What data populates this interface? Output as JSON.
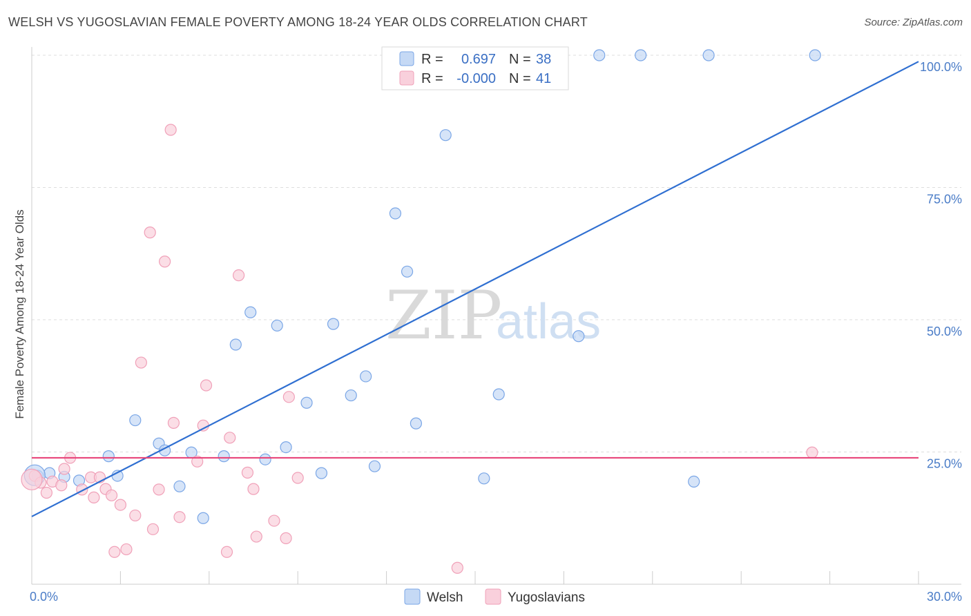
{
  "title": "WELSH VS YUGOSLAVIAN FEMALE POVERTY AMONG 18-24 YEAR OLDS CORRELATION CHART",
  "source": "Source: ZipAtlas.com",
  "watermark": {
    "zip": "ZIP",
    "atlas": "atlas"
  },
  "legend": {
    "welsh": {
      "r_label": "R =",
      "r_value": "0.697",
      "n_label": "N =",
      "n_value": "38"
    },
    "yugo": {
      "r_label": "R =",
      "r_value": "-0.000",
      "n_label": "N =",
      "n_value": "41"
    }
  },
  "chart_data": {
    "type": "scatter",
    "title": "WELSH VS YUGOSLAVIAN FEMALE POVERTY AMONG 18-24 YEAR OLDS CORRELATION CHART",
    "xlabel": "",
    "ylabel": "Female Poverty Among 18-24 Year Olds",
    "xlim": [
      0,
      30
    ],
    "ylim": [
      0,
      100
    ],
    "x_ticks": [
      {
        "value": 0,
        "label": "0.0%"
      },
      {
        "value": 30,
        "label": "30.0%"
      }
    ],
    "y_ticks": [
      {
        "value": 25,
        "label": "25.0%"
      },
      {
        "value": 50,
        "label": "50.0%"
      },
      {
        "value": 75,
        "label": "75.0%"
      },
      {
        "value": 100,
        "label": "100.0%"
      }
    ],
    "grid": true,
    "legend_position": "top-center",
    "series": [
      {
        "name": "Welsh",
        "color": "#7aa6e6",
        "fill": "#c5d9f5",
        "trend": {
          "x": [
            0,
            30
          ],
          "y": [
            12.8,
            98.8
          ],
          "color": "#2f6fd1"
        },
        "points": [
          [
            0.2,
            20.5
          ],
          [
            0.6,
            21
          ],
          [
            1.1,
            20.3
          ],
          [
            1.6,
            19.6
          ],
          [
            2.6,
            24.2
          ],
          [
            2.9,
            20.5
          ],
          [
            3.5,
            31
          ],
          [
            4.3,
            26.6
          ],
          [
            4.5,
            25.3
          ],
          [
            5.0,
            18.5
          ],
          [
            5.4,
            24.9
          ],
          [
            5.8,
            12.5
          ],
          [
            6.5,
            24.2
          ],
          [
            6.9,
            45.3
          ],
          [
            7.4,
            51.4
          ],
          [
            7.9,
            23.6
          ],
          [
            8.3,
            48.9
          ],
          [
            8.6,
            25.9
          ],
          [
            9.3,
            34.3
          ],
          [
            9.8,
            21.0
          ],
          [
            10.2,
            49.2
          ],
          [
            10.8,
            35.7
          ],
          [
            11.3,
            39.3
          ],
          [
            11.6,
            22.3
          ],
          [
            12.3,
            70.1
          ],
          [
            12.7,
            59.1
          ],
          [
            13.0,
            30.4
          ],
          [
            14.0,
            84.9
          ],
          [
            14.6,
            100
          ],
          [
            15.3,
            20.0
          ],
          [
            15.8,
            35.9
          ],
          [
            18.5,
            46.9
          ],
          [
            19.2,
            100
          ],
          [
            20.6,
            100
          ],
          [
            22.4,
            19.4
          ],
          [
            22.9,
            100
          ],
          [
            26.5,
            100
          ],
          [
            0.1,
            20.6
          ]
        ]
      },
      {
        "name": "Yugoslavians",
        "color": "#f0a0b8",
        "fill": "#f9d0dc",
        "trend": {
          "x": [
            0,
            30
          ],
          "y": [
            23.9,
            23.9
          ],
          "color": "#e8457a"
        },
        "points": [
          [
            0.1,
            20.5
          ],
          [
            0.3,
            19.2
          ],
          [
            0.5,
            17.3
          ],
          [
            0.7,
            19.4
          ],
          [
            1.1,
            21.8
          ],
          [
            1.3,
            23.9
          ],
          [
            1.7,
            17.9
          ],
          [
            2.0,
            20.2
          ],
          [
            2.1,
            16.4
          ],
          [
            2.3,
            20.2
          ],
          [
            2.5,
            18.0
          ],
          [
            2.7,
            16.8
          ],
          [
            2.8,
            6.1
          ],
          [
            3.0,
            15.0
          ],
          [
            3.2,
            6.6
          ],
          [
            3.5,
            13.0
          ],
          [
            3.7,
            41.9
          ],
          [
            4.0,
            66.5
          ],
          [
            4.1,
            10.4
          ],
          [
            4.3,
            17.9
          ],
          [
            4.5,
            61.0
          ],
          [
            4.7,
            85.9
          ],
          [
            4.8,
            30.5
          ],
          [
            5.0,
            12.7
          ],
          [
            5.6,
            23.2
          ],
          [
            5.8,
            30.0
          ],
          [
            5.9,
            37.6
          ],
          [
            6.6,
            6.1
          ],
          [
            6.7,
            27.7
          ],
          [
            7.0,
            58.4
          ],
          [
            7.3,
            21.1
          ],
          [
            7.5,
            18.0
          ],
          [
            7.6,
            9.0
          ],
          [
            8.2,
            12.0
          ],
          [
            8.7,
            35.4
          ],
          [
            8.6,
            8.7
          ],
          [
            9.0,
            20.1
          ],
          [
            14.4,
            3.1
          ],
          [
            26.4,
            24.9
          ],
          [
            0.0,
            19.8
          ],
          [
            1.0,
            18.7
          ]
        ]
      }
    ]
  },
  "bottom_legend": [
    {
      "name": "Welsh"
    },
    {
      "name": "Yugoslavians"
    }
  ]
}
